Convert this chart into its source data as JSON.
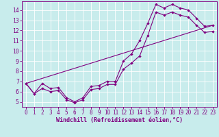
{
  "xlabel": "Windchill (Refroidissement éolien,°C)",
  "bg_color": "#c8ecec",
  "line_color": "#800080",
  "grid_color": "#ffffff",
  "spine_color": "#800080",
  "xlim": [
    -0.5,
    23.5
  ],
  "ylim": [
    4.5,
    14.85
  ],
  "yticks": [
    5,
    6,
    7,
    8,
    9,
    10,
    11,
    12,
    13,
    14
  ],
  "xticks": [
    0,
    1,
    2,
    3,
    4,
    5,
    6,
    7,
    8,
    9,
    10,
    11,
    12,
    13,
    14,
    15,
    16,
    17,
    18,
    19,
    20,
    21,
    22,
    23
  ],
  "line1_x": [
    0,
    1,
    2,
    3,
    4,
    5,
    6,
    7,
    8,
    9,
    10,
    11,
    12,
    13,
    14,
    15,
    16,
    17,
    18,
    19,
    20,
    21,
    22,
    23
  ],
  "line1_y": [
    6.8,
    5.8,
    6.8,
    6.3,
    6.4,
    5.4,
    5.0,
    5.4,
    6.5,
    6.6,
    7.0,
    7.0,
    9.0,
    9.7,
    11.0,
    12.7,
    14.55,
    14.2,
    14.55,
    14.2,
    14.0,
    13.2,
    12.4,
    12.5
  ],
  "line2_x": [
    0,
    1,
    2,
    3,
    4,
    5,
    6,
    7,
    8,
    9,
    10,
    11,
    12,
    13,
    14,
    15,
    16,
    17,
    18,
    19,
    20,
    21,
    22,
    23
  ],
  "line2_y": [
    6.8,
    5.8,
    6.3,
    6.0,
    6.1,
    5.2,
    4.9,
    5.2,
    6.2,
    6.3,
    6.7,
    6.7,
    8.2,
    8.8,
    9.5,
    11.5,
    13.8,
    13.5,
    13.8,
    13.5,
    13.3,
    12.5,
    11.8,
    11.9
  ],
  "line3_x": [
    0,
    23
  ],
  "line3_y": [
    6.8,
    12.5
  ],
  "tick_fontsize": 5.5,
  "xlabel_fontsize": 6,
  "marker_size": 2.2,
  "line_width": 0.8
}
